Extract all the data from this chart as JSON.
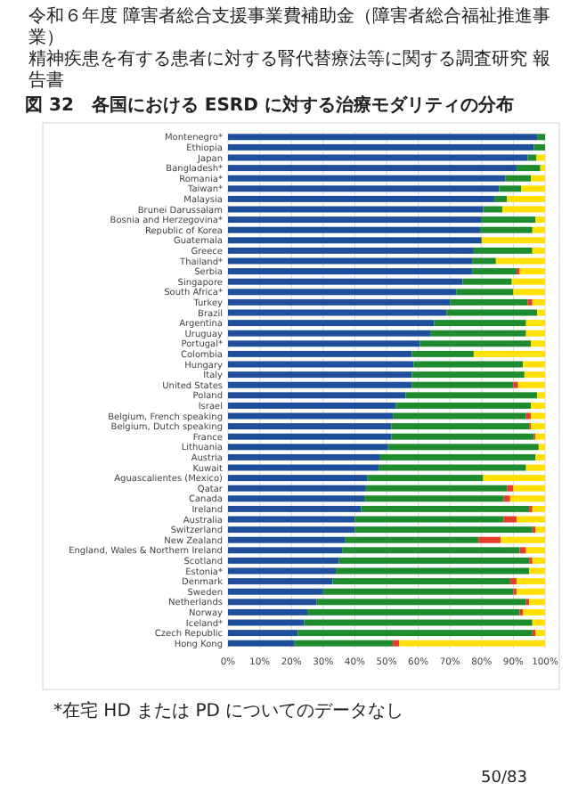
{
  "chart_data": {
    "type": "bar",
    "orientation": "horizontal",
    "stacked": true,
    "title": "図 32　各国における ESRD に対する治療モダリティの分布",
    "annotations": [
      "令和６年度 障害者総合支援事業費補助金（障害者総合福祉推進事業）",
      "精神疾患を有する患者に対する腎代替療法等に関する調査研究 報告書",
      "*在宅 HD または PD についてのデータなし",
      "50/83"
    ],
    "categories": [
      "Montenegro*",
      "Ethiopia",
      "Japan",
      "Bangladesh*",
      "Romania*",
      "Taiwan*",
      "Malaysia",
      "Brunei Darussalam",
      "Bosnia and Herzegovina*",
      "Republic of Korea",
      "Guatemala",
      "Greece",
      "Thailand*",
      "Serbia",
      "Singapore",
      "South Africa*",
      "Turkey",
      "Brazil",
      "Argentina",
      "Uruguay",
      "Portugal*",
      "Colombia",
      "Hungary",
      "Italy",
      "United States",
      "Poland",
      "Israel",
      "Belgium, French speaking",
      "Belgium, Dutch speaking",
      "France",
      "Lithuania",
      "Austria",
      "Kuwait",
      "Aguascalientes (Mexico)",
      "Qatar",
      "Canada",
      "Ireland",
      "Australia",
      "Switzerland",
      "New Zealand",
      "England, Wales & Northern Ireland",
      "Scotland",
      "Estonia*",
      "Denmark",
      "Sweden",
      "Netherlands",
      "Norway",
      "Iceland*",
      "Czech Republic",
      "Hong Kong"
    ],
    "series": [
      {
        "color": "#1f4e9c",
        "values": [
          97.5,
          96.5,
          94.5,
          91,
          87.5,
          85.5,
          84,
          80.5,
          80,
          79.5,
          80,
          77.5,
          77,
          77,
          74,
          72,
          70,
          69,
          65,
          64,
          60.5,
          58,
          58.5,
          58,
          58,
          56,
          53,
          52,
          51.5,
          51.5,
          50.5,
          48,
          47.5,
          44,
          43.5,
          43,
          42,
          40,
          40,
          37,
          36,
          35,
          34,
          33,
          30,
          28,
          25,
          24,
          22,
          21
        ]
      },
      {
        "color": "#1e8c2e",
        "values": [
          2.5,
          3.5,
          2.8,
          7.5,
          8,
          7,
          4,
          6,
          17,
          16.5,
          0,
          18.5,
          7.5,
          14,
          15.5,
          18,
          24.5,
          28.5,
          29,
          30,
          35,
          19.5,
          34.5,
          35.5,
          32,
          41.5,
          42.5,
          42,
          43.5,
          45,
          47.5,
          49,
          46.5,
          36.5,
          44.5,
          44,
          53,
          47,
          56,
          42,
          56,
          60,
          61,
          56,
          60,
          66,
          67,
          72,
          74,
          31
        ]
      },
      {
        "color": "#e53b2b",
        "values": [
          0,
          0,
          0,
          0,
          0,
          0,
          0,
          0,
          0,
          0,
          0,
          0,
          0,
          1,
          0,
          0,
          1.5,
          0,
          0,
          0,
          0,
          0,
          0,
          0,
          1.5,
          0,
          0,
          1.5,
          0.5,
          0.5,
          0,
          0,
          0,
          0,
          2,
          2,
          1,
          4,
          1,
          7,
          2,
          1,
          0,
          2,
          1,
          1,
          1,
          0,
          1,
          2
        ]
      },
      {
        "color": "#ffe000",
        "values": [
          0,
          0,
          2.7,
          1.5,
          4.5,
          7.5,
          12,
          13.5,
          3,
          4,
          20,
          4,
          15.5,
          8,
          10.5,
          10,
          4,
          2.5,
          6,
          6,
          4.5,
          22.5,
          7,
          6.5,
          8.5,
          2.5,
          4.5,
          4.5,
          4.5,
          3,
          2,
          3,
          6,
          19.5,
          10,
          11,
          4,
          9,
          3,
          14,
          6,
          4,
          5,
          9,
          9,
          5,
          7,
          4,
          3,
          46
        ]
      }
    ],
    "xlim": [
      0,
      100
    ],
    "xticks": [
      {
        "value": 0,
        "label": "0%"
      },
      {
        "value": 10,
        "label": "10%"
      },
      {
        "value": 20,
        "label": "20%"
      },
      {
        "value": 30,
        "label": "30%"
      },
      {
        "value": 40,
        "label": "40%"
      },
      {
        "value": 50,
        "label": "50%"
      },
      {
        "value": 60,
        "label": "60%"
      },
      {
        "value": 70,
        "label": "70%"
      },
      {
        "value": 80,
        "label": "80%"
      },
      {
        "value": 90,
        "label": "90%"
      },
      {
        "value": 100,
        "label": "100%"
      }
    ],
    "grid": "x"
  }
}
